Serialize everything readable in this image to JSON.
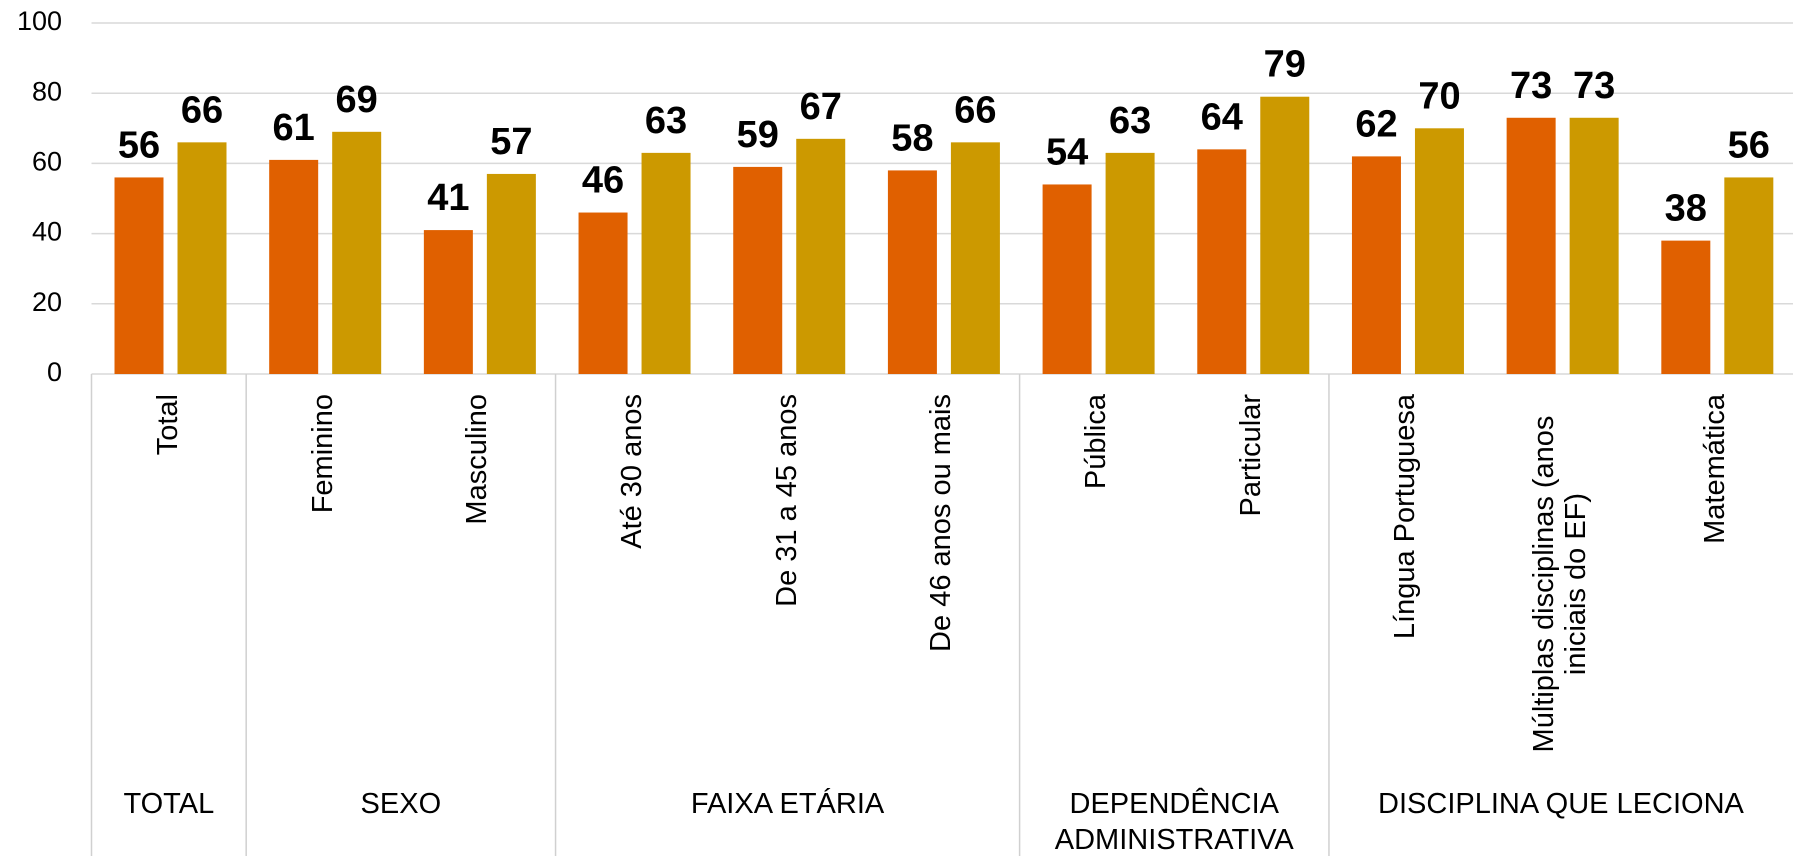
{
  "chart_data": {
    "type": "bar",
    "categories": [
      "Total",
      "Feminino",
      "Masculino",
      "Até 30 anos",
      "De 31 a 45 anos",
      "De 46 anos ou mais",
      "Pública",
      "Particular",
      "Língua Portuguesa",
      "Múltiplas disciplinas (anos iniciais do EF)",
      "Matemática"
    ],
    "groups": [
      {
        "label": "TOTAL",
        "count": 1
      },
      {
        "label": "SEXO",
        "count": 2
      },
      {
        "label": "FAIXA ETÁRIA",
        "count": 3
      },
      {
        "label": "DEPENDÊNCIA ADMINISTRATIVA",
        "count": 2
      },
      {
        "label": "DISCIPLINA QUE LECIONA",
        "count": 3
      }
    ],
    "series": [
      {
        "color": "#e06000",
        "values": [
          56,
          61,
          41,
          46,
          59,
          58,
          54,
          64,
          62,
          73,
          38
        ]
      },
      {
        "color": "#cc9900",
        "values": [
          66,
          69,
          57,
          63,
          67,
          66,
          63,
          79,
          70,
          73,
          56
        ]
      }
    ],
    "ylim": [
      0,
      100
    ],
    "yticks": [
      0,
      20,
      40,
      60,
      80,
      100
    ],
    "grid": true
  }
}
